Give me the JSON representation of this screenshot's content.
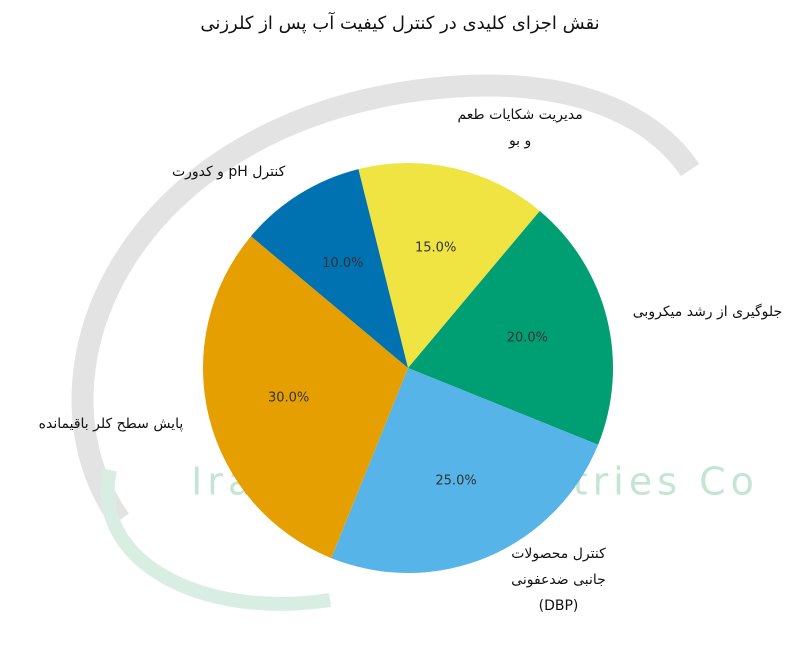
{
  "chart_data": {
    "type": "pie",
    "title": "نقش اجزای کلیدی در کنترل کیفیت آب پس از کلرزنی",
    "watermark": "Iran Chlor Industries Co",
    "categories": [
      "مدیریت شکایات طعم و بو",
      "جلوگیری از رشد میکروبی",
      "کنترل محصولات جانبی ضدعفونی (DBP)",
      "پایش سطح کلر باقیمانده",
      "کنترل pH و کدورت"
    ],
    "values": [
      15,
      20,
      25,
      30,
      10
    ],
    "value_labels": [
      "15.0%",
      "20.0%",
      "25.0%",
      "30.0%",
      "10.0%"
    ],
    "colors": [
      "#f0e442",
      "#009e73",
      "#56b4e9",
      "#e69f00",
      "#0072b2"
    ]
  }
}
